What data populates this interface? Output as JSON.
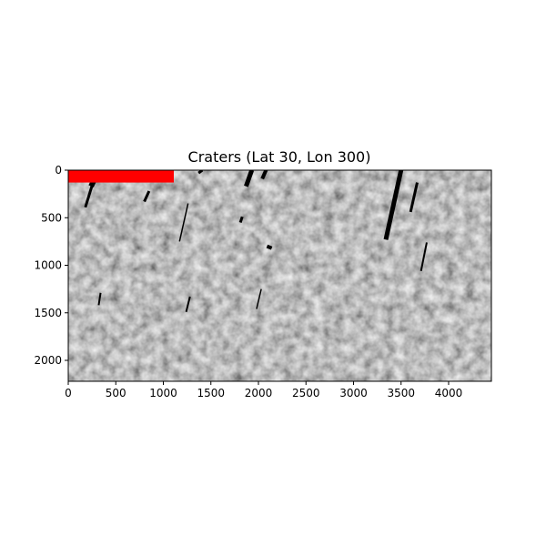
{
  "chart_data": {
    "type": "heatmap",
    "title": "Craters (Lat 30, Lon 300)",
    "xlabel": "",
    "ylabel": "",
    "xlim": [
      0,
      4450
    ],
    "ylim": [
      2220,
      0
    ],
    "y_axis_inverted": true,
    "x_ticks": [
      0,
      500,
      1000,
      1500,
      2000,
      2500,
      3000,
      3500,
      4000
    ],
    "x_tick_labels": [
      "0",
      "500",
      "1000",
      "1500",
      "2000",
      "2500",
      "3000",
      "3500",
      "4000"
    ],
    "y_ticks": [
      0,
      500,
      1000,
      1500,
      2000
    ],
    "y_tick_labels": [
      "0",
      "500",
      "1000",
      "1500",
      "2000"
    ],
    "grid": false,
    "image": {
      "description_colormap": "grayscale",
      "background_color": "#808080",
      "highlight_color": "#ff0000",
      "streak_color": "#000000"
    },
    "highlight_region": {
      "x": [
        0,
        1110
      ],
      "y": [
        0,
        130
      ]
    },
    "streaks": [
      {
        "x1": 180,
        "y1": 390,
        "x2": 300,
        "y2": 0,
        "w": 3
      },
      {
        "x1": 240,
        "y1": 170,
        "x2": 320,
        "y2": 0,
        "w": 6
      },
      {
        "x1": 800,
        "y1": 330,
        "x2": 850,
        "y2": 220,
        "w": 3
      },
      {
        "x1": 1170,
        "y1": 750,
        "x2": 1260,
        "y2": 350,
        "w": 1.5
      },
      {
        "x1": 1240,
        "y1": 1490,
        "x2": 1280,
        "y2": 1330,
        "w": 2
      },
      {
        "x1": 1370,
        "y1": 30,
        "x2": 1410,
        "y2": 0,
        "w": 3
      },
      {
        "x1": 1870,
        "y1": 170,
        "x2": 1930,
        "y2": 0,
        "w": 5
      },
      {
        "x1": 1810,
        "y1": 550,
        "x2": 1830,
        "y2": 490,
        "w": 3
      },
      {
        "x1": 2090,
        "y1": 800,
        "x2": 2140,
        "y2": 820,
        "w": 4
      },
      {
        "x1": 2040,
        "y1": 90,
        "x2": 2080,
        "y2": 0,
        "w": 4
      },
      {
        "x1": 3340,
        "y1": 730,
        "x2": 3500,
        "y2": 0,
        "w": 5
      },
      {
        "x1": 3600,
        "y1": 440,
        "x2": 3670,
        "y2": 130,
        "w": 3
      },
      {
        "x1": 3710,
        "y1": 1060,
        "x2": 3770,
        "y2": 760,
        "w": 2
      },
      {
        "x1": 320,
        "y1": 1420,
        "x2": 340,
        "y2": 1290,
        "w": 2
      },
      {
        "x1": 1980,
        "y1": 1460,
        "x2": 2030,
        "y2": 1250,
        "w": 1.5
      }
    ]
  }
}
